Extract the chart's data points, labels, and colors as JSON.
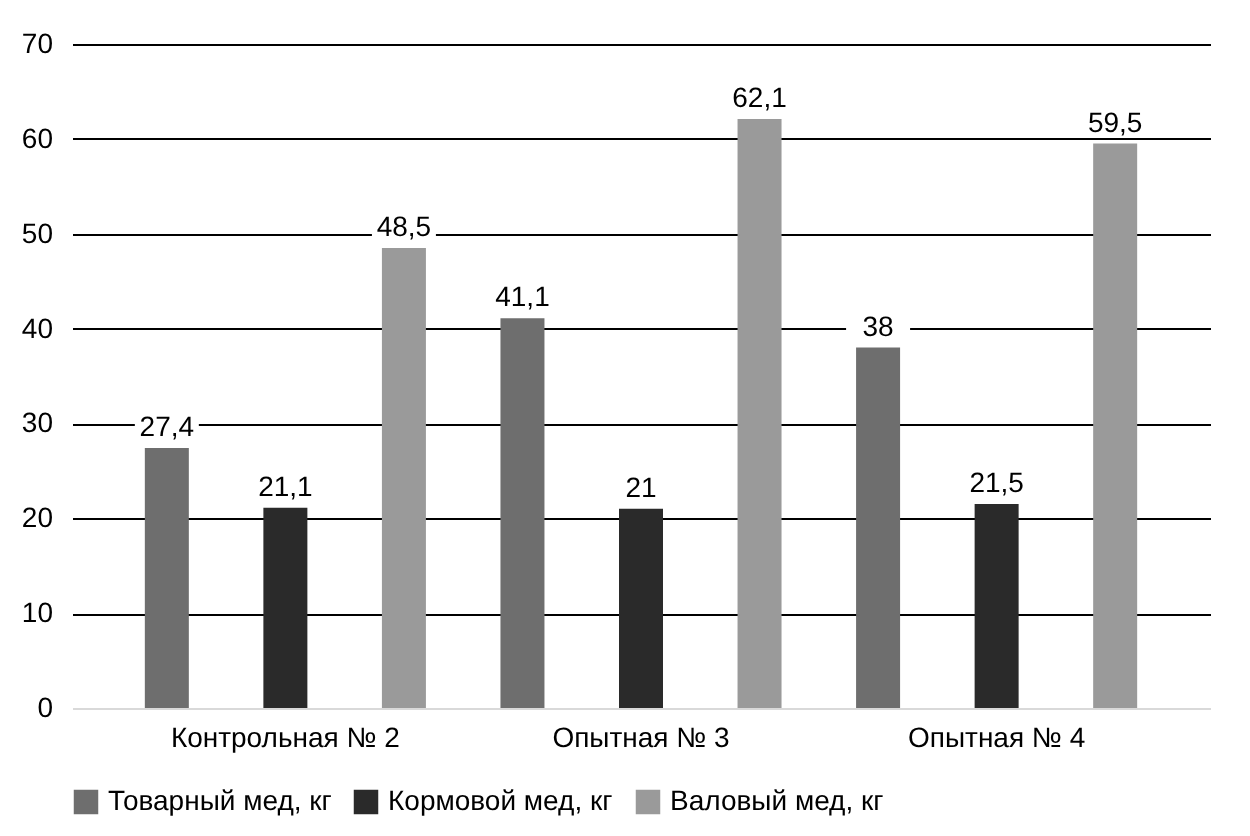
{
  "chart_data": {
    "type": "bar",
    "categories": [
      "Контрольная № 2",
      "Опытная № 3",
      "Опытная № 4"
    ],
    "series": [
      {
        "name": "Товарный мед, кг",
        "color": "#6e6e6e",
        "values": [
          27.4,
          41.1,
          38
        ],
        "value_labels": [
          "27,4",
          "41,1",
          "38"
        ]
      },
      {
        "name": "Кормовой мед, кг",
        "color": "#2a2a2a",
        "values": [
          21.1,
          21,
          21.5
        ],
        "value_labels": [
          "21,1",
          "21",
          "21,5"
        ]
      },
      {
        "name": "Валовый мед, кг",
        "color": "#9a9a9a",
        "values": [
          48.5,
          62.1,
          59.5
        ],
        "value_labels": [
          "48,5",
          "62,1",
          "59,5"
        ]
      }
    ],
    "ylim": [
      0,
      70
    ],
    "yticks": [
      0,
      10,
      20,
      30,
      40,
      50,
      60,
      70
    ],
    "grid": "y",
    "legend": "bottom"
  }
}
